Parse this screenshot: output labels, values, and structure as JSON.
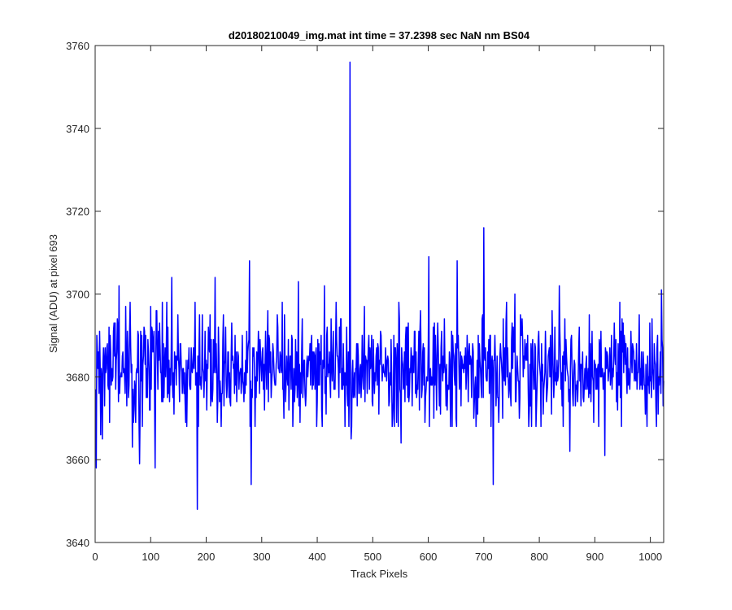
{
  "chart_data": {
    "type": "line",
    "title": "d20180210049_img.mat int time = 37.2398 sec  NaN nm BS04",
    "xlabel": "Track Pixels",
    "ylabel": "Signal (ADU) at pixel 693",
    "xlim": [
      0,
      1024
    ],
    "ylim": [
      3640,
      3760
    ],
    "xticks": [
      0,
      100,
      200,
      300,
      400,
      500,
      600,
      700,
      800,
      900,
      1000
    ],
    "yticks": [
      3640,
      3660,
      3680,
      3700,
      3720,
      3740,
      3760
    ],
    "grid": false,
    "series": [
      {
        "color": "#0000ff",
        "baseline": 3682,
        "noise_sd": 6.5,
        "num_points": 1024,
        "x_start": 1,
        "seed": 20180210,
        "notable_points": [
          {
            "x": 2,
            "y": 3658
          },
          {
            "x": 10,
            "y": 3666
          },
          {
            "x": 13,
            "y": 3665
          },
          {
            "x": 43,
            "y": 3702
          },
          {
            "x": 67,
            "y": 3663
          },
          {
            "x": 80,
            "y": 3659
          },
          {
            "x": 108,
            "y": 3658
          },
          {
            "x": 138,
            "y": 3704
          },
          {
            "x": 184,
            "y": 3648
          },
          {
            "x": 216,
            "y": 3704
          },
          {
            "x": 278,
            "y": 3708
          },
          {
            "x": 281,
            "y": 3654
          },
          {
            "x": 366,
            "y": 3703
          },
          {
            "x": 413,
            "y": 3702
          },
          {
            "x": 459,
            "y": 3756
          },
          {
            "x": 461,
            "y": 3665
          },
          {
            "x": 551,
            "y": 3664
          },
          {
            "x": 601,
            "y": 3709
          },
          {
            "x": 652,
            "y": 3708
          },
          {
            "x": 700,
            "y": 3716
          },
          {
            "x": 717,
            "y": 3654
          },
          {
            "x": 756,
            "y": 3700
          },
          {
            "x": 836,
            "y": 3702
          },
          {
            "x": 855,
            "y": 3662
          },
          {
            "x": 918,
            "y": 3661
          },
          {
            "x": 1020,
            "y": 3701
          }
        ]
      }
    ]
  }
}
